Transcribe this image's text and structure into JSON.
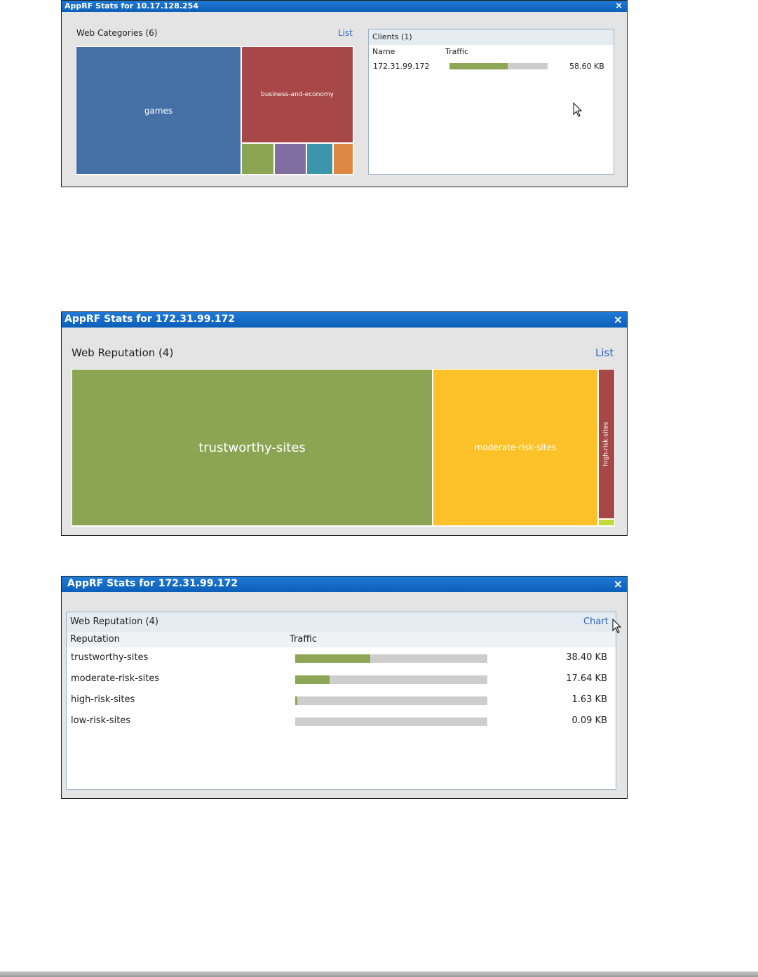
{
  "window1": {
    "title": "AppRF Stats for 10.17.128.254",
    "close": "×",
    "section_title": "Web Categories (6)",
    "toggle_link": "List",
    "treemap": [
      {
        "label": "games",
        "color": "#4470a6"
      },
      {
        "label": "business-and-economy",
        "color": "#a84747"
      },
      {
        "label": "",
        "color": "#8ba552"
      },
      {
        "label": "",
        "color": "#806ea0"
      },
      {
        "label": "",
        "color": "#3d95ac"
      },
      {
        "label": "",
        "color": "#de8743"
      }
    ],
    "clients": {
      "title": "Clients (1)",
      "col_name": "Name",
      "col_traffic": "Traffic",
      "rows": [
        {
          "name": "172.31.99.172",
          "value": "58.60 KB",
          "fill": 0.59
        }
      ]
    }
  },
  "window2": {
    "title": "AppRF Stats for 172.31.99.172",
    "close": "×",
    "section_title": "Web Reputation (4)",
    "toggle_link": "List",
    "treemap": [
      {
        "label": "trustworthy-sites",
        "color": "#8ba552"
      },
      {
        "label": "moderate-risk-sites",
        "color": "#fdc22a"
      },
      {
        "label": "high-risk-sites",
        "color": "#a84747"
      },
      {
        "label": "",
        "color": "#c4d93c"
      }
    ]
  },
  "window3": {
    "title": "AppRF Stats for 172.31.99.172",
    "close": "×",
    "section_title": "Web Reputation (4)",
    "toggle_link": "Chart",
    "col_reputation": "Reputation",
    "col_traffic": "Traffic",
    "rows": [
      {
        "name": "trustworthy-sites",
        "value": "38.40 KB",
        "fill": 0.39
      },
      {
        "name": "moderate-risk-sites",
        "value": "17.64 KB",
        "fill": 0.18
      },
      {
        "name": "high-risk-sites",
        "value": "1.63 KB",
        "fill": 0.012
      },
      {
        "name": "low-risk-sites",
        "value": "0.09 KB",
        "fill": 0.0
      }
    ]
  }
}
